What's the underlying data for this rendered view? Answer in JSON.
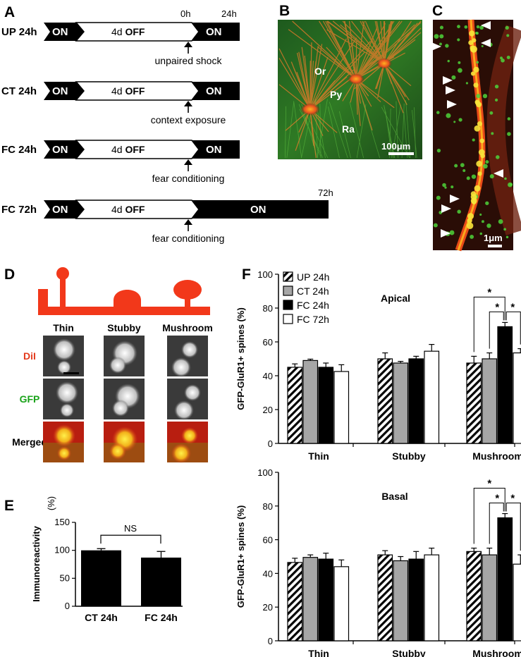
{
  "panels": {
    "a": "A",
    "b": "B",
    "c": "C",
    "d": "D",
    "e": "E",
    "f": "F"
  },
  "timeline": {
    "time_0h": "0h",
    "time_24h": "24h",
    "time_72h": "72h",
    "on": "ON",
    "off_prefix": "4d ",
    "off_word": "OFF",
    "rows": [
      {
        "label": "UP 24h",
        "event": "unpaired shock"
      },
      {
        "label": "CT 24h",
        "event": "context exposure"
      },
      {
        "label": "FC 24h",
        "event": "fear conditioning"
      },
      {
        "label": "FC 72h",
        "event": "fear conditioning"
      }
    ]
  },
  "micrograph_b": {
    "regions": [
      "Or",
      "Py",
      "Ra"
    ],
    "scale": "100μm"
  },
  "micrograph_c": {
    "scale": "1μm"
  },
  "spine_types": {
    "columns": [
      "Thin",
      "Stubby",
      "Mushroom"
    ],
    "rows": [
      "DiI",
      "GFP",
      "Merged"
    ],
    "row_colors": [
      "#e33a1c",
      "#1aa31a",
      "#000000"
    ],
    "spine_color": "#f2381a"
  },
  "colors": {
    "red": "#f2381a",
    "orange": "#e8731e",
    "green": "#33c233",
    "black": "#000000"
  },
  "chart_e": {
    "type": "bar",
    "categories": [
      "CT 24h",
      "FC 24h"
    ],
    "values": [
      100,
      87
    ],
    "errors": [
      3,
      11
    ],
    "ylabel": "Immunoreactivity",
    "ylabel_unit": "(%)",
    "yticks": [
      "0",
      "50",
      "100",
      "150"
    ],
    "ylim": [
      0,
      150
    ],
    "annotation": "NS"
  },
  "chart_data": [
    {
      "type": "bar",
      "title": "Apical",
      "categories": [
        "Thin",
        "Stubby",
        "Mushroom"
      ],
      "series": [
        {
          "name": "UP 24h",
          "values": [
            45,
            50,
            47.5
          ],
          "errors": [
            2,
            3.5,
            4
          ]
        },
        {
          "name": "CT 24h",
          "values": [
            49,
            47.5,
            50
          ],
          "errors": [
            0.8,
            1,
            3.5
          ]
        },
        {
          "name": "FC 24h",
          "values": [
            45,
            50,
            69
          ],
          "errors": [
            2.5,
            1.5,
            2.5
          ]
        },
        {
          "name": "FC 72h",
          "values": [
            42.5,
            54.5,
            53.5
          ],
          "errors": [
            4,
            4,
            2.5
          ]
        }
      ],
      "ylabel": "GFP-GluR1+ spines (%)",
      "yticks": [
        "0",
        "20",
        "40",
        "60",
        "80",
        "100"
      ],
      "ylim": [
        0,
        100
      ],
      "significance": "*",
      "legend_position": "top-left"
    },
    {
      "type": "bar",
      "title": "Basal",
      "categories": [
        "Thin",
        "Stubby",
        "Mushroom"
      ],
      "series": [
        {
          "name": "UP 24h",
          "values": [
            46.5,
            51,
            53
          ],
          "errors": [
            2.5,
            2.5,
            2
          ]
        },
        {
          "name": "CT 24h",
          "values": [
            49.5,
            47.5,
            51
          ],
          "errors": [
            1.5,
            2.5,
            4
          ]
        },
        {
          "name": "FC 24h",
          "values": [
            48.5,
            48.5,
            73
          ],
          "errors": [
            3.5,
            4.5,
            2.5
          ]
        },
        {
          "name": "FC 72h",
          "values": [
            44,
            51,
            45.5
          ],
          "errors": [
            4,
            4,
            5.5
          ]
        }
      ],
      "ylabel": "GFP-GluR1+ spines (%)",
      "yticks": [
        "0",
        "20",
        "40",
        "60",
        "80",
        "100"
      ],
      "ylim": [
        0,
        100
      ],
      "significance": "*"
    }
  ]
}
